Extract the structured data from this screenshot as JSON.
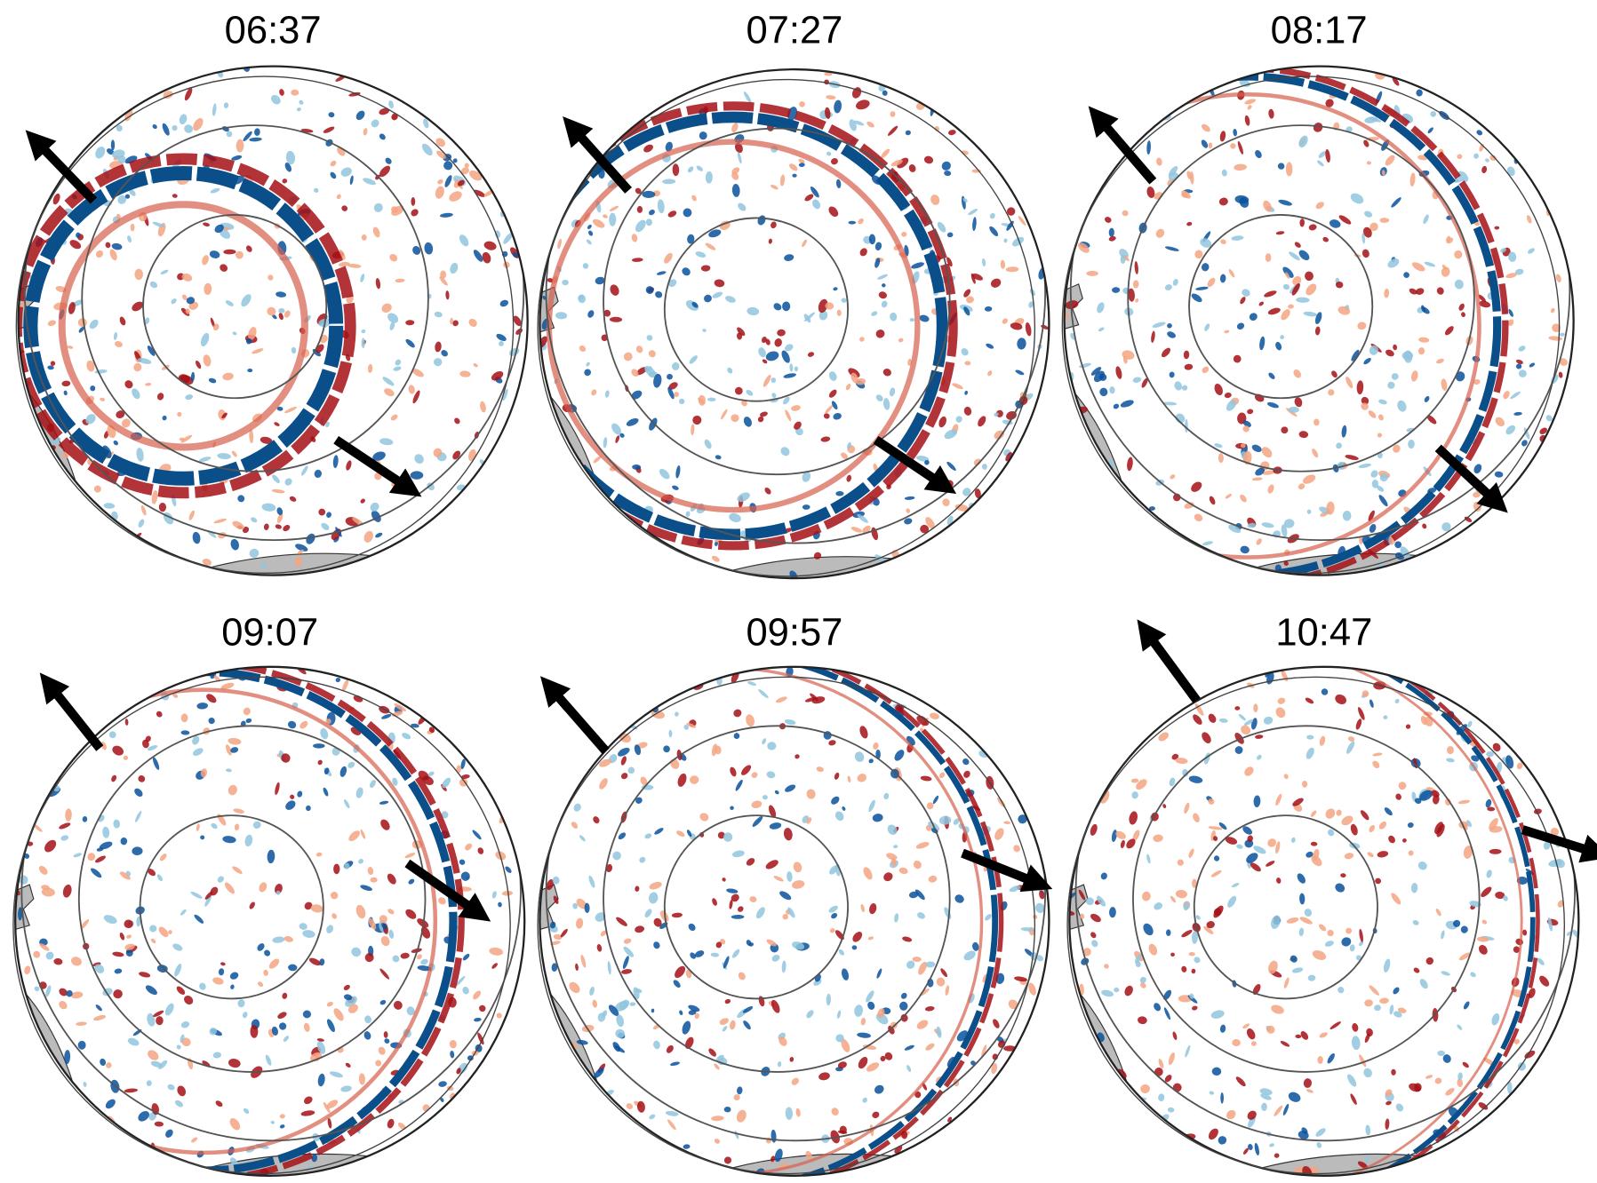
{
  "panels": [
    {
      "title": "06:37"
    },
    {
      "title": "07:27"
    },
    {
      "title": "08:17"
    },
    {
      "title": "09:07"
    },
    {
      "title": "09:57"
    },
    {
      "title": "10:47"
    }
  ]
}
